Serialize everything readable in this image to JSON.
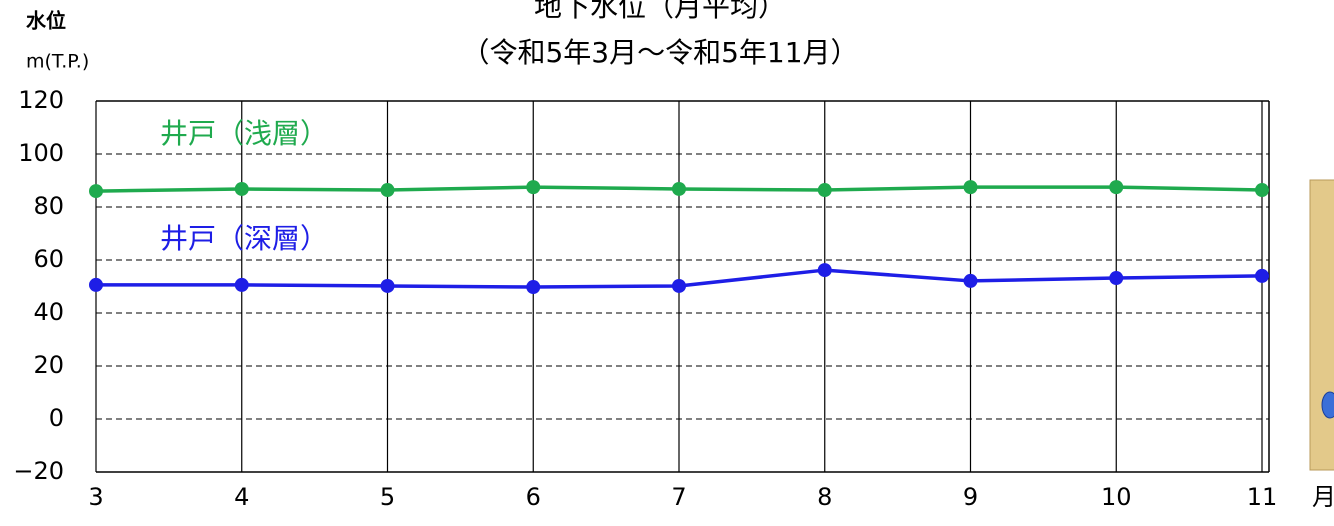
{
  "chart_data": {
    "type": "line",
    "title": "地下水位（月平均）",
    "subtitle": "（令和5年3月～令和5年11月）",
    "y_label": "水位",
    "y_unit": "m(T.P.)",
    "x_label": "月",
    "x": [
      3,
      4,
      5,
      6,
      7,
      8,
      9,
      10,
      11
    ],
    "xlim": [
      3,
      11
    ],
    "xticks": [
      3,
      4,
      5,
      6,
      7,
      8,
      9,
      10,
      11
    ],
    "ylim": [
      -20,
      120
    ],
    "yticks": [
      {
        "value": -20,
        "label": "−20"
      },
      0,
      20,
      40,
      60,
      80,
      100,
      120
    ],
    "grid": true,
    "series": [
      {
        "name": "井戸（浅層）",
        "color": "#1faa4e",
        "values": [
          86.0,
          86.8,
          86.4,
          87.5,
          86.8,
          86.4,
          87.5,
          87.5,
          86.4
        ]
      },
      {
        "name": "井戸（深層）",
        "color": "#1e1ee6",
        "values": [
          50.6,
          50.6,
          50.2,
          49.8,
          50.2,
          56.2,
          52.1,
          53.2,
          54.0
        ]
      }
    ]
  }
}
